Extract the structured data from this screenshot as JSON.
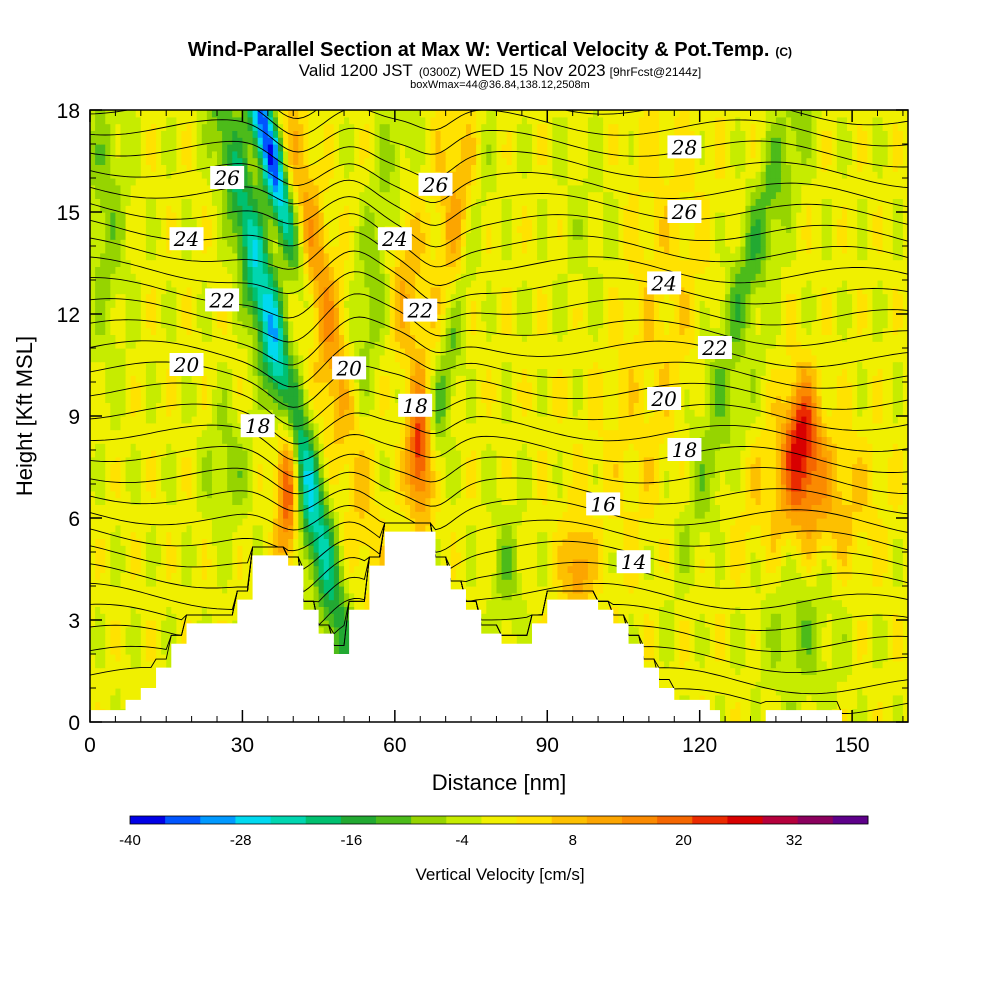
{
  "title": "Wind-Parallel Section at Max W: Vertical Velocity & Pot.Temp.",
  "title_mark": "(C)",
  "subtitle": {
    "main_a": "Valid 1200 JST",
    "small_a": "(0300Z)",
    "main_b": "WED 15 Nov 2023",
    "small_b": "[9hrFcst@2144z]"
  },
  "box_info": "boxWmax=44@36.84,138.12,2508m",
  "chart_data": {
    "type": "heatmap",
    "xlabel": "Distance [nm]",
    "ylabel": "Height [Kft MSL]",
    "xlim": [
      0,
      161
    ],
    "ylim": [
      0,
      18
    ],
    "x_ticks": [
      "0",
      "30",
      "60",
      "90",
      "120",
      "150"
    ],
    "y_ticks": [
      "0",
      "3",
      "6",
      "9",
      "12",
      "15",
      "18"
    ],
    "colorbar": {
      "label": "Vertical Velocity [cm/s]",
      "tick_labels": [
        "-40",
        "-28",
        "-16",
        "-4",
        "8",
        "20",
        "32"
      ],
      "bins": [
        -40,
        -36,
        -32,
        -28,
        -24,
        -20,
        -16,
        -12,
        -8,
        -4,
        0,
        4,
        8,
        12,
        16,
        20,
        24,
        28,
        32,
        36,
        40
      ],
      "colors": [
        "#0000e6",
        "#0055ff",
        "#0099ff",
        "#00d9f0",
        "#00d6b0",
        "#00c070",
        "#22a932",
        "#4cbb1a",
        "#96d400",
        "#c6ec00",
        "#f0f000",
        "#ffe200",
        "#fdc000",
        "#fca500",
        "#fb8a00",
        "#f56600",
        "#eb2a00",
        "#d80000",
        "#b5003c",
        "#8b005e",
        "#5e008a"
      ]
    },
    "terrain_kft": [
      [
        0,
        0.35
      ],
      [
        7,
        0.35
      ],
      [
        7,
        0.65
      ],
      [
        10,
        0.65
      ],
      [
        10,
        1
      ],
      [
        13,
        1
      ],
      [
        13,
        1.6
      ],
      [
        16,
        1.6
      ],
      [
        16,
        2.3
      ],
      [
        19,
        2.3
      ],
      [
        19,
        2.9
      ],
      [
        29,
        2.9
      ],
      [
        29,
        3.6
      ],
      [
        32,
        3.6
      ],
      [
        32,
        4.9
      ],
      [
        39,
        4.9
      ],
      [
        39,
        4.6
      ],
      [
        42,
        4.6
      ],
      [
        42,
        3.3
      ],
      [
        45,
        3.3
      ],
      [
        45,
        2.6
      ],
      [
        48,
        2.6
      ],
      [
        48,
        2
      ],
      [
        51,
        2
      ],
      [
        51,
        3.3
      ],
      [
        55,
        3.3
      ],
      [
        55,
        4.6
      ],
      [
        58,
        4.6
      ],
      [
        58,
        5.6
      ],
      [
        68,
        5.6
      ],
      [
        68,
        4.6
      ],
      [
        71,
        4.6
      ],
      [
        71,
        3.9
      ],
      [
        74,
        3.9
      ],
      [
        74,
        3.3
      ],
      [
        77,
        3.3
      ],
      [
        77,
        2.6
      ],
      [
        81,
        2.6
      ],
      [
        81,
        2.3
      ],
      [
        87,
        2.3
      ],
      [
        87,
        2.9
      ],
      [
        90,
        2.9
      ],
      [
        90,
        3.6
      ],
      [
        100,
        3.6
      ],
      [
        100,
        3.3
      ],
      [
        103,
        3.3
      ],
      [
        103,
        2.9
      ],
      [
        106,
        2.9
      ],
      [
        106,
        2.3
      ],
      [
        109,
        2.3
      ],
      [
        109,
        1.6
      ],
      [
        112,
        1.6
      ],
      [
        112,
        1
      ],
      [
        115,
        1
      ],
      [
        115,
        0.65
      ],
      [
        122,
        0.65
      ],
      [
        122,
        0.35
      ],
      [
        124,
        0.35
      ],
      [
        124,
        0
      ],
      [
        133,
        0
      ],
      [
        133,
        0.35
      ],
      [
        148,
        0.35
      ],
      [
        148,
        0
      ],
      [
        161,
        0
      ]
    ],
    "theta_contour_labels": [
      {
        "v": "26",
        "x": 27,
        "y": 16.0
      },
      {
        "v": "24",
        "x": 19,
        "y": 14.2
      },
      {
        "v": "22",
        "x": 26,
        "y": 12.4
      },
      {
        "v": "20",
        "x": 19,
        "y": 10.5
      },
      {
        "v": "18",
        "x": 33,
        "y": 8.7
      },
      {
        "v": "20",
        "x": 51,
        "y": 10.4
      },
      {
        "v": "26",
        "x": 68,
        "y": 15.8
      },
      {
        "v": "24",
        "x": 60,
        "y": 14.2
      },
      {
        "v": "22",
        "x": 65,
        "y": 12.1
      },
      {
        "v": "18",
        "x": 64,
        "y": 9.3
      },
      {
        "v": "28",
        "x": 117,
        "y": 16.9
      },
      {
        "v": "26",
        "x": 117,
        "y": 15.0
      },
      {
        "v": "24",
        "x": 113,
        "y": 12.9
      },
      {
        "v": "22",
        "x": 123,
        "y": 11.0
      },
      {
        "v": "20",
        "x": 113,
        "y": 9.5
      },
      {
        "v": "18",
        "x": 117,
        "y": 8.0
      },
      {
        "v": "16",
        "x": 101,
        "y": 6.4
      },
      {
        "v": "14",
        "x": 107,
        "y": 4.7
      }
    ]
  }
}
